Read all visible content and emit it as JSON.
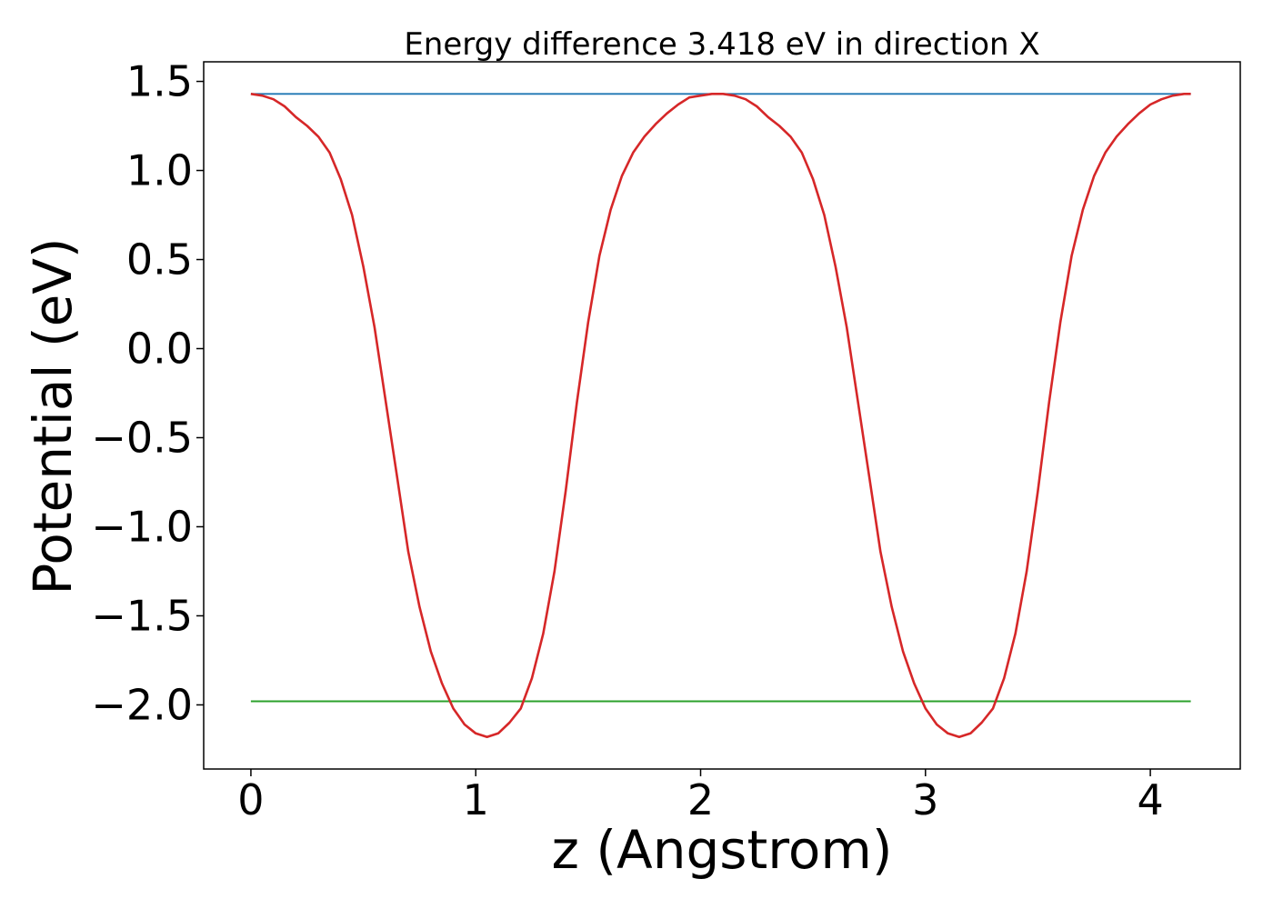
{
  "chart_data": {
    "type": "line",
    "title": "Energy difference 3.418 eV in direction X",
    "xlabel": "z (Angstrom)",
    "ylabel": "Potential (eV)",
    "xlim": [
      -0.21,
      4.4
    ],
    "ylim": [
      -2.36,
      1.61
    ],
    "xticks": [
      0,
      1,
      2,
      3,
      4
    ],
    "xtick_labels": [
      "0",
      "1",
      "2",
      "3",
      "4"
    ],
    "yticks": [
      -2.0,
      -1.5,
      -1.0,
      -0.5,
      0.0,
      0.5,
      1.0,
      1.5
    ],
    "ytick_labels": [
      "−2.0",
      "−1.5",
      "−1.0",
      "−0.5",
      "0.0",
      "0.5",
      "1.0",
      "1.5"
    ],
    "grid": false,
    "series": [
      {
        "color": "#d62728",
        "x": [
          0,
          0.05,
          0.1,
          0.15,
          0.2,
          0.25,
          0.3,
          0.35,
          0.4,
          0.45,
          0.5,
          0.55,
          0.6,
          0.65,
          0.7,
          0.75,
          0.8,
          0.85,
          0.9,
          0.95,
          1.0,
          1.05,
          1.1,
          1.15,
          1.2,
          1.25,
          1.3,
          1.35,
          1.4,
          1.45,
          1.5,
          1.55,
          1.6,
          1.65,
          1.7,
          1.75,
          1.8,
          1.85,
          1.9,
          1.95,
          2.0,
          2.05,
          2.1,
          2.15,
          2.2,
          2.25,
          2.3,
          2.35,
          2.4,
          2.45,
          2.5,
          2.55,
          2.6,
          2.65,
          2.7,
          2.75,
          2.8,
          2.85,
          2.9,
          2.95,
          3.0,
          3.05,
          3.1,
          3.15,
          3.2,
          3.25,
          3.3,
          3.35,
          3.4,
          3.45,
          3.5,
          3.55,
          3.6,
          3.65,
          3.7,
          3.75,
          3.8,
          3.85,
          3.9,
          3.95,
          4.0,
          4.05,
          4.1,
          4.15,
          4.18
        ],
        "y": [
          1.43,
          1.42,
          1.4,
          1.36,
          1.3,
          1.25,
          1.19,
          1.1,
          0.95,
          0.75,
          0.46,
          0.12,
          -0.3,
          -0.72,
          -1.14,
          -1.45,
          -1.7,
          -1.88,
          -2.02,
          -2.11,
          -2.16,
          -2.18,
          -2.16,
          -2.1,
          -2.02,
          -1.85,
          -1.6,
          -1.25,
          -0.8,
          -0.3,
          0.15,
          0.52,
          0.78,
          0.97,
          1.1,
          1.19,
          1.26,
          1.32,
          1.37,
          1.41,
          1.42,
          1.43,
          1.43,
          1.42,
          1.4,
          1.36,
          1.3,
          1.25,
          1.19,
          1.1,
          0.95,
          0.75,
          0.46,
          0.12,
          -0.3,
          -0.72,
          -1.14,
          -1.45,
          -1.7,
          -1.88,
          -2.02,
          -2.11,
          -2.16,
          -2.18,
          -2.16,
          -2.1,
          -2.02,
          -1.85,
          -1.6,
          -1.25,
          -0.8,
          -0.3,
          0.15,
          0.52,
          0.78,
          0.97,
          1.1,
          1.19,
          1.26,
          1.32,
          1.37,
          1.4,
          1.42,
          1.43,
          1.43
        ]
      },
      {
        "color": "#1f77b4",
        "x": [
          0,
          4.18
        ],
        "y": [
          1.43,
          1.43
        ]
      },
      {
        "color": "#2ca02c",
        "x": [
          0,
          4.18
        ],
        "y": [
          -1.98,
          -1.98
        ]
      }
    ]
  }
}
